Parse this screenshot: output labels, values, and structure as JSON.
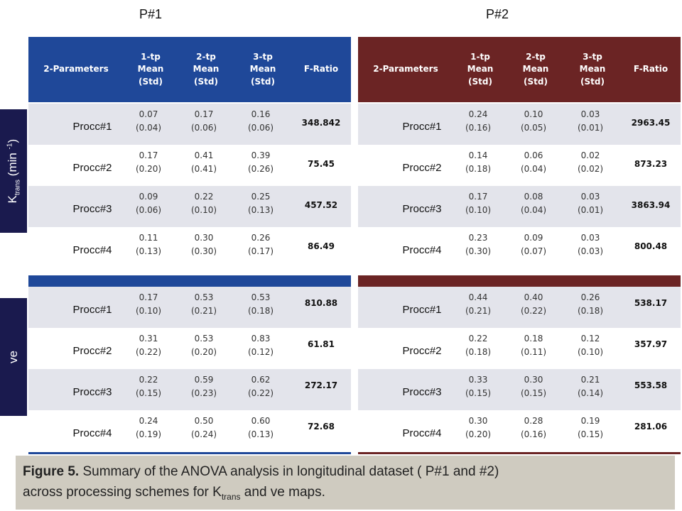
{
  "panel_titles": {
    "p1": "P#1",
    "p2": "P#2"
  },
  "sidebar": {
    "ktrans": {
      "base": "K",
      "sub": "trans",
      "mid": " (min ",
      "sup": "-1",
      "end": ")"
    },
    "ve": "ve"
  },
  "header": {
    "param": "2-Parameters",
    "tp1": [
      "1-tp",
      "Mean",
      "(Std)"
    ],
    "tp2": [
      "2-tp",
      "Mean",
      "(Std)"
    ],
    "tp3": [
      "3-tp",
      "Mean",
      "(Std)"
    ],
    "fratio": "F-Ratio"
  },
  "colors": {
    "p1_header": "#1f4899",
    "p2_header": "#6b2424",
    "sidebar": "#1a1a4e",
    "row_shade": "#e3e4eb",
    "caption_bg": "#cfcbc0"
  },
  "p1": {
    "ktrans": [
      {
        "label": "Procc#1",
        "m1": "0.07",
        "s1": "(0.04)",
        "m2": "0.17",
        "s2": "(0.06)",
        "m3": "0.16",
        "s3": "(0.06)",
        "f": "348.842"
      },
      {
        "label": "Procc#2",
        "m1": "0.17",
        "s1": "(0.20)",
        "m2": "0.41",
        "s2": "(0.41)",
        "m3": "0.39",
        "s3": "(0.26)",
        "f": "75.45"
      },
      {
        "label": "Procc#3",
        "m1": "0.09",
        "s1": "(0.06)",
        "m2": "0.22",
        "s2": "(0.10)",
        "m3": "0.25",
        "s3": "(0.13)",
        "f": "457.52"
      },
      {
        "label": "Procc#4",
        "m1": "0.11",
        "s1": "(0.13)",
        "m2": "0.30",
        "s2": "(0.30)",
        "m3": "0.26",
        "s3": "(0.17)",
        "f": "86.49"
      }
    ],
    "ve": [
      {
        "label": "Procc#1",
        "m1": "0.17",
        "s1": "(0.10)",
        "m2": "0.53",
        "s2": "(0.21)",
        "m3": "0.53",
        "s3": "(0.18)",
        "f": "810.88"
      },
      {
        "label": "Procc#2",
        "m1": "0.31",
        "s1": "(0.22)",
        "m2": "0.53",
        "s2": "(0.20)",
        "m3": "0.83",
        "s3": "(0.12)",
        "f": "61.81"
      },
      {
        "label": "Procc#3",
        "m1": "0.22",
        "s1": "(0.15)",
        "m2": "0.59",
        "s2": "(0.23)",
        "m3": "0.62",
        "s3": "(0.22)",
        "f": "272.17"
      },
      {
        "label": "Procc#4",
        "m1": "0.24",
        "s1": "(0.19)",
        "m2": "0.50",
        "s2": "(0.24)",
        "m3": "0.60",
        "s3": "(0.13)",
        "f": "72.68"
      }
    ]
  },
  "p2": {
    "ktrans": [
      {
        "label": "Procc#1",
        "m1": "0.24",
        "s1": "(0.16)",
        "m2": "0.10",
        "s2": "(0.05)",
        "m3": "0.03",
        "s3": "(0.01)",
        "f": "2963.45"
      },
      {
        "label": "Procc#2",
        "m1": "0.14",
        "s1": "(0.18)",
        "m2": "0.06",
        "s2": "(0.04)",
        "m3": "0.02",
        "s3": "(0.02)",
        "f": "873.23"
      },
      {
        "label": "Procc#3",
        "m1": "0.17",
        "s1": "(0.10)",
        "m2": "0.08",
        "s2": "(0.04)",
        "m3": "0.03",
        "s3": "(0.01)",
        "f": "3863.94"
      },
      {
        "label": "Procc#4",
        "m1": "0.23",
        "s1": "(0.30)",
        "m2": "0.09",
        "s2": "(0.07)",
        "m3": "0.03",
        "s3": "(0.03)",
        "f": "800.48"
      }
    ],
    "ve": [
      {
        "label": "Procc#1",
        "m1": "0.44",
        "s1": "(0.21)",
        "m2": "0.40",
        "s2": "(0.22)",
        "m3": "0.26",
        "s3": "(0.18)",
        "f": "538.17"
      },
      {
        "label": "Procc#2",
        "m1": "0.22",
        "s1": "(0.18)",
        "m2": "0.18",
        "s2": "(0.11)",
        "m3": "0.12",
        "s3": "(0.10)",
        "f": "357.97"
      },
      {
        "label": "Procc#3",
        "m1": "0.33",
        "s1": "(0.15)",
        "m2": "0.30",
        "s2": "(0.15)",
        "m3": "0.21",
        "s3": "(0.14)",
        "f": "553.58"
      },
      {
        "label": "Procc#4",
        "m1": "0.30",
        "s1": "(0.20)",
        "m2": "0.28",
        "s2": "(0.16)",
        "m3": "0.19",
        "s3": "(0.15)",
        "f": "281.06"
      }
    ]
  },
  "caption": {
    "fig": "Figure 5.",
    "line1": " Summary of the ANOVA analysis in longitudinal dataset ( P#1 and #2)",
    "line2a": "across processing schemes for K",
    "line2sub": "trans",
    "line2b": " and ve maps."
  }
}
